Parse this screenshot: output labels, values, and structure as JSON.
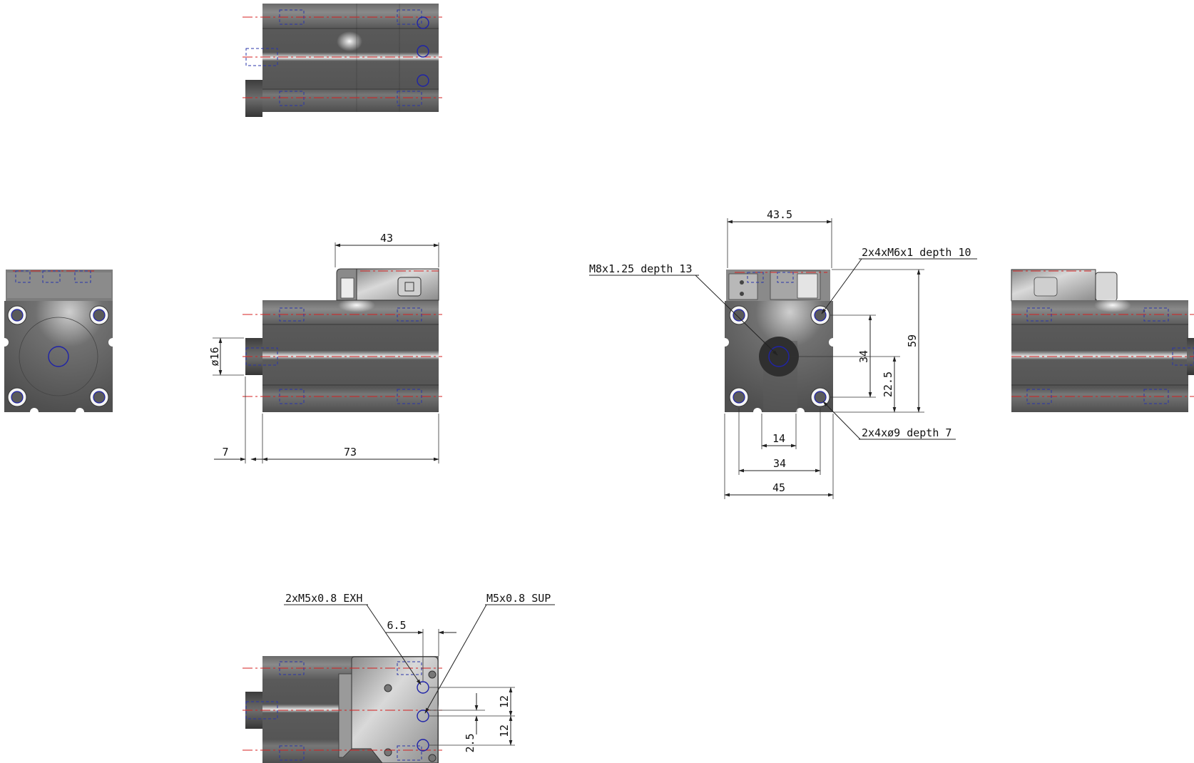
{
  "colors": {
    "body": "#5e5e5e",
    "highlight": "#cfcfcf",
    "centerline": "#d42020",
    "hidden": "#2a35a8",
    "dimension": "#222222"
  },
  "dimensions": {
    "side_length_top": "43",
    "stem_diameter": "ø16",
    "stem_length": "7",
    "body_length": "73",
    "front_width_top": "43.5",
    "front_height": "59",
    "hole_pitch_vertical": "34",
    "center_height": "22.5",
    "slot_width": "14",
    "hole_pitch_horizontal": "34",
    "body_width": "45",
    "port_offset": "6.5",
    "port_pitch_upper": "12",
    "port_pitch_lower": "12",
    "port_offset_small": "2.5"
  },
  "notes": {
    "center_thread": "M8x1.25 depth 13",
    "mount_thread": "2x4xM6x1 depth 10",
    "mount_hole": "2x4xø9 depth 7",
    "exhaust_port": "2xM5x0.8 EXH",
    "supply_port": "M5x0.8 SUP"
  }
}
